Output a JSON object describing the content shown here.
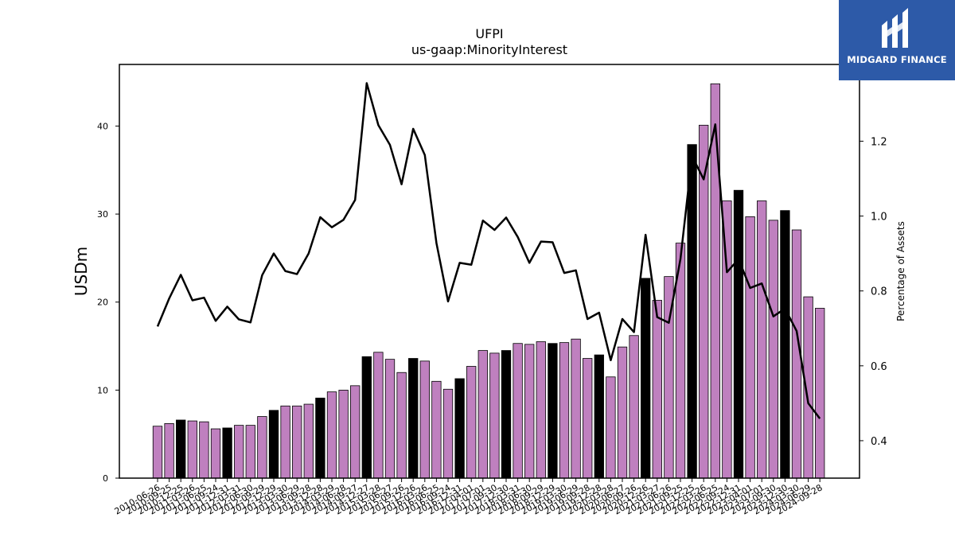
{
  "chart_data": {
    "type": "bar",
    "title": "UFPI",
    "subtitle": "us-gaap:MinorityInterest",
    "ylabel": "USDm",
    "y2label": "Percentage of Assets",
    "ylim": [
      0,
      47
    ],
    "y2lim": [
      0.3,
      1.405
    ],
    "yticks": [
      0,
      10,
      20,
      30,
      40
    ],
    "y2ticks": [
      0.4,
      0.6,
      0.8,
      1.0,
      1.2
    ],
    "x_tick_labels": [
      "2010-06-26",
      "2010-09-25",
      "2010-12-25",
      "2011-03-26",
      "2011-06-25",
      "2011-09-24",
      "2011-12-31",
      "2012-03-31",
      "2012-06-30",
      "2012-09-29",
      "2012-12-29",
      "2013-03-30",
      "2013-06-29",
      "2013-09-28",
      "2013-12-28",
      "2014-03-29",
      "2014-06-28",
      "2014-09-27",
      "2014-12-27",
      "2015-03-28",
      "2015-06-27",
      "2015-09-26",
      "2015-12-26",
      "2016-03-26",
      "2016-06-25",
      "2016-09-24",
      "2016-12-31",
      "2017-04-01",
      "2017-07-01",
      "2017-09-30",
      "2017-12-30",
      "2018-03-31",
      "2018-06-30",
      "2018-09-29",
      "2018-12-29",
      "2019-03-30",
      "2019-06-29",
      "2019-09-28",
      "2019-12-28",
      "2020-03-28",
      "2020-06-27",
      "2020-09-26",
      "2020-12-26",
      "2021-03-27",
      "2021-06-26",
      "2021-09-25",
      "2021-12-25",
      "2022-03-26",
      "2022-06-25",
      "2022-09-24",
      "2022-12-31",
      "2023-04-01",
      "2023-07-01",
      "2023-09-30",
      "2023-12-30",
      "2024-03-30",
      "2024-06-29",
      "2024-09-28"
    ],
    "bar_values": [
      5.9,
      6.2,
      6.6,
      6.5,
      6.4,
      5.6,
      5.7,
      6.0,
      6.0,
      7.0,
      7.7,
      8.2,
      8.2,
      8.4,
      9.1,
      9.8,
      10.0,
      10.5,
      13.8,
      14.3,
      13.5,
      12.0,
      13.6,
      13.3,
      11.0,
      10.1,
      11.3,
      12.7,
      14.5,
      14.2,
      14.5,
      15.3,
      15.2,
      15.5,
      15.3,
      15.4,
      15.8,
      13.6,
      14.0,
      11.5,
      14.9,
      16.2,
      22.7,
      20.2,
      22.9,
      26.7,
      37.9,
      40.1,
      44.8,
      31.5,
      32.7,
      29.7,
      31.5,
      29.3,
      30.4,
      28.2,
      20.6,
      19.3
    ],
    "bar_is_fiscal_year_end": [
      false,
      false,
      true,
      false,
      false,
      false,
      true,
      false,
      false,
      false,
      true,
      false,
      false,
      false,
      true,
      false,
      false,
      false,
      true,
      false,
      false,
      false,
      true,
      false,
      false,
      false,
      true,
      false,
      false,
      false,
      true,
      false,
      false,
      false,
      true,
      false,
      false,
      false,
      true,
      false,
      false,
      false,
      true,
      false,
      false,
      false,
      true,
      false,
      false,
      false,
      true,
      false,
      false,
      false,
      true,
      false,
      false,
      false
    ],
    "line_values": [
      0.705,
      0.78,
      0.843,
      0.775,
      0.782,
      0.72,
      0.758,
      0.724,
      0.716,
      0.842,
      0.9,
      0.853,
      0.845,
      0.9,
      0.997,
      0.97,
      0.99,
      1.043,
      1.355,
      1.243,
      1.19,
      1.085,
      1.233,
      1.163,
      0.928,
      0.772,
      0.875,
      0.87,
      0.988,
      0.963,
      0.996,
      0.944,
      0.875,
      0.932,
      0.93,
      0.848,
      0.855,
      0.725,
      0.742,
      0.615,
      0.725,
      0.69,
      0.95,
      0.73,
      0.715,
      0.885,
      1.16,
      1.098,
      1.245,
      0.85,
      0.885,
      0.808,
      0.82,
      0.732,
      0.753,
      0.693,
      0.5,
      0.459
    ],
    "colors": {
      "bar_default": "#bf80bf",
      "bar_fiscal_year_end": "#000000",
      "bar_edge": "#000000",
      "line": "#000000"
    },
    "grid": false,
    "legend": "none"
  },
  "logo": {
    "text": "MIDGARD FINANCE",
    "background": "#2d5aa8"
  }
}
